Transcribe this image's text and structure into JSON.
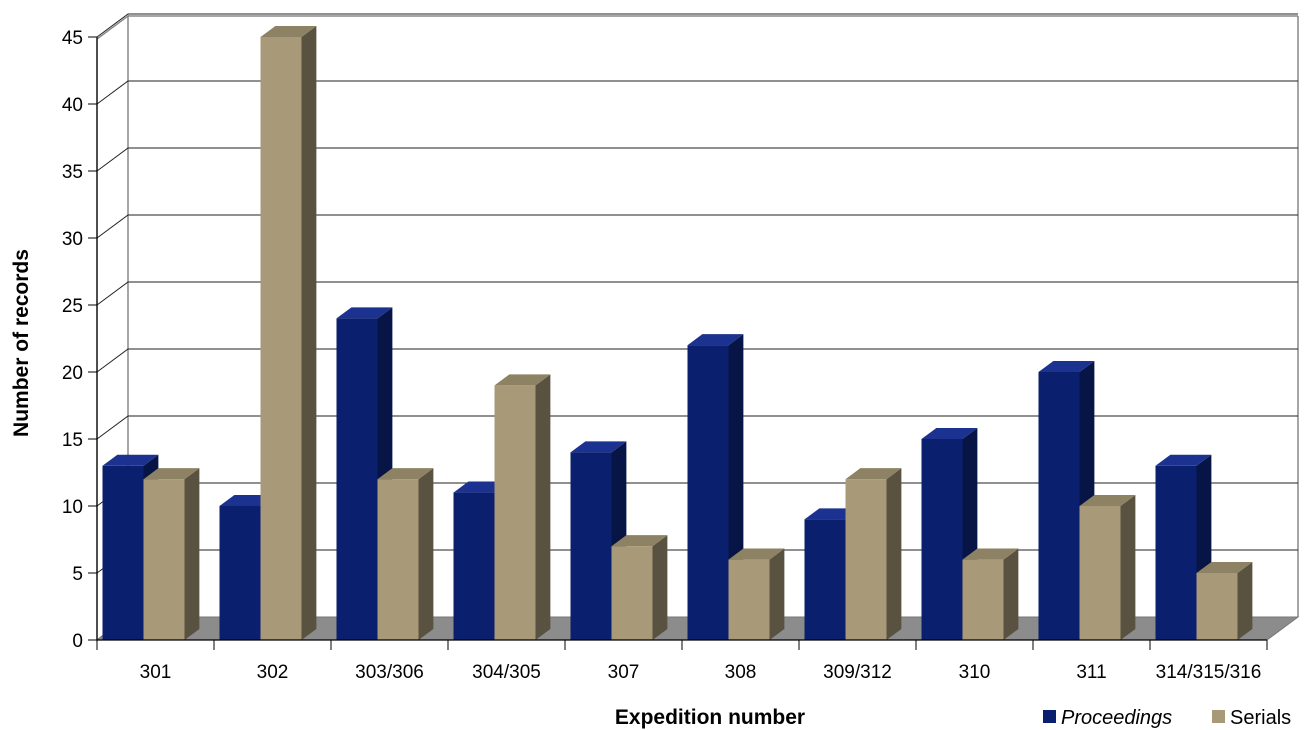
{
  "chart_data": {
    "type": "bar",
    "style": "3d-clustered-column",
    "xlabel": "Expedition number",
    "ylabel": "Number of records",
    "ylim": [
      0,
      45
    ],
    "yticks": [
      0,
      5,
      10,
      15,
      20,
      25,
      30,
      35,
      40,
      45
    ],
    "grid": true,
    "legend": "bottom-right",
    "categories": [
      "301",
      "302",
      "303/306",
      "304/305",
      "307",
      "308",
      "309/312",
      "310",
      "311",
      "314/315/316"
    ],
    "series": [
      {
        "name": "Proceedings",
        "italic": true,
        "color": "#0a1f6e",
        "values": [
          13,
          10,
          24,
          11,
          14,
          22,
          9,
          15,
          20,
          13
        ]
      },
      {
        "name": "Serials",
        "italic": false,
        "color": "#a89a78",
        "values": [
          12,
          45,
          12,
          19,
          7,
          6,
          12,
          6,
          10,
          5
        ]
      }
    ]
  }
}
